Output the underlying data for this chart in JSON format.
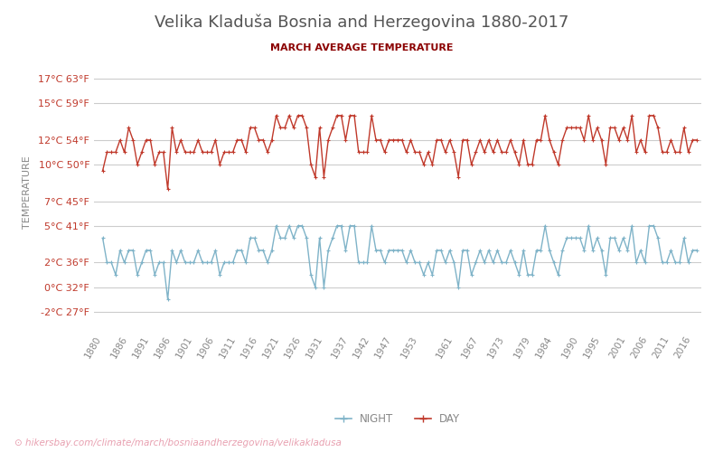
{
  "title": "Velika Kladuša Bosnia and Herzegovina 1880-2017",
  "subtitle": "MARCH AVERAGE TEMPERATURE",
  "ylabel": "TEMPERATURE",
  "xlabel_url": "hikersbay.com/climate/march/bosniaandherzegovina/velikakladusa",
  "yticks_c": [
    17,
    15,
    12,
    10,
    7,
    5,
    2,
    0,
    -2
  ],
  "yticks_f": [
    63,
    59,
    54,
    50,
    45,
    41,
    36,
    32,
    27
  ],
  "x_labels": [
    "1880",
    "1886",
    "1891",
    "1896",
    "1901",
    "1906",
    "1911",
    "1916",
    "1921",
    "1926",
    "1931",
    "1937",
    "1942",
    "1947",
    "1953",
    "1961",
    "1967",
    "1973",
    "1979",
    "1984",
    "1990",
    "1995",
    "2001",
    "2006",
    "2011",
    "2016"
  ],
  "years": [
    1880,
    1881,
    1882,
    1883,
    1884,
    1885,
    1886,
    1887,
    1888,
    1889,
    1890,
    1891,
    1892,
    1893,
    1894,
    1895,
    1896,
    1897,
    1898,
    1899,
    1900,
    1901,
    1902,
    1903,
    1904,
    1905,
    1906,
    1907,
    1908,
    1909,
    1910,
    1911,
    1912,
    1913,
    1914,
    1915,
    1916,
    1917,
    1918,
    1919,
    1920,
    1921,
    1922,
    1923,
    1924,
    1925,
    1926,
    1927,
    1928,
    1929,
    1930,
    1931,
    1932,
    1933,
    1934,
    1935,
    1936,
    1937,
    1938,
    1939,
    1940,
    1941,
    1942,
    1943,
    1944,
    1945,
    1946,
    1947,
    1948,
    1949,
    1950,
    1951,
    1952,
    1953,
    1954,
    1955,
    1956,
    1957,
    1958,
    1959,
    1960,
    1961,
    1962,
    1963,
    1964,
    1965,
    1966,
    1967,
    1968,
    1969,
    1970,
    1971,
    1972,
    1973,
    1974,
    1975,
    1976,
    1977,
    1978,
    1979,
    1980,
    1981,
    1982,
    1983,
    1984,
    1985,
    1986,
    1987,
    1988,
    1989,
    1990,
    1991,
    1992,
    1993,
    1994,
    1995,
    1996,
    1997,
    1998,
    1999,
    2000,
    2001,
    2002,
    2003,
    2004,
    2005,
    2006,
    2007,
    2008,
    2009,
    2010,
    2011,
    2012,
    2013,
    2014,
    2015,
    2016,
    2017
  ],
  "day_temps": [
    9.5,
    11,
    11,
    11,
    12,
    11,
    13,
    12,
    10,
    11,
    12,
    12,
    10,
    11,
    11,
    8,
    13,
    11,
    12,
    11,
    11,
    11,
    12,
    11,
    11,
    11,
    12,
    10,
    11,
    11,
    11,
    12,
    12,
    11,
    13,
    13,
    12,
    12,
    11,
    12,
    14,
    13,
    13,
    14,
    13,
    14,
    14,
    13,
    10,
    9,
    13,
    9,
    12,
    13,
    14,
    14,
    12,
    14,
    14,
    11,
    11,
    11,
    14,
    12,
    12,
    11,
    12,
    12,
    12,
    12,
    11,
    12,
    11,
    11,
    10,
    11,
    10,
    12,
    12,
    11,
    12,
    11,
    9,
    12,
    12,
    10,
    11,
    12,
    11,
    12,
    11,
    12,
    11,
    11,
    12,
    11,
    10,
    12,
    10,
    10,
    12,
    12,
    14,
    12,
    11,
    10,
    12,
    13,
    13,
    13,
    13,
    12,
    14,
    12,
    13,
    12,
    10,
    13,
    13,
    12,
    13,
    12,
    14,
    11,
    12,
    11,
    14,
    14,
    13,
    11,
    11,
    12,
    11,
    11,
    13,
    11,
    12,
    12
  ],
  "night_temps": [
    4,
    2,
    2,
    1,
    3,
    2,
    3,
    3,
    1,
    2,
    3,
    3,
    1,
    2,
    2,
    -1,
    3,
    2,
    3,
    2,
    2,
    2,
    3,
    2,
    2,
    2,
    3,
    1,
    2,
    2,
    2,
    3,
    3,
    2,
    4,
    4,
    3,
    3,
    2,
    3,
    5,
    4,
    4,
    5,
    4,
    5,
    5,
    4,
    1,
    0,
    4,
    0,
    3,
    4,
    5,
    5,
    3,
    5,
    5,
    2,
    2,
    2,
    5,
    3,
    3,
    2,
    3,
    3,
    3,
    3,
    2,
    3,
    2,
    2,
    1,
    2,
    1,
    3,
    3,
    2,
    3,
    2,
    0,
    3,
    3,
    1,
    2,
    3,
    2,
    3,
    2,
    3,
    2,
    2,
    3,
    2,
    1,
    3,
    1,
    1,
    3,
    3,
    5,
    3,
    2,
    1,
    3,
    4,
    4,
    4,
    4,
    3,
    5,
    3,
    4,
    3,
    1,
    4,
    4,
    3,
    4,
    3,
    5,
    2,
    3,
    2,
    5,
    5,
    4,
    2,
    2,
    3,
    2,
    2,
    4,
    2,
    3,
    3
  ],
  "day_color": "#c0392b",
  "night_color": "#7fb3c8",
  "grid_color": "#cccccc",
  "bg_color": "#ffffff",
  "title_color": "#555555",
  "subtitle_color": "#8b0000",
  "tick_color": "#c0392b",
  "night_tick_color": "#5588aa",
  "ylabel_color": "#888888"
}
